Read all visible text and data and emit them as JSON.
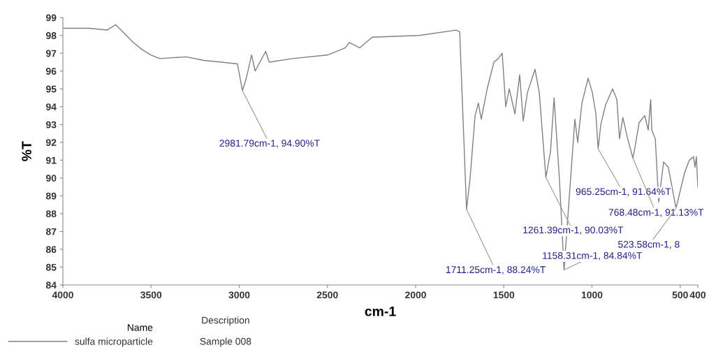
{
  "chart_data": {
    "type": "line",
    "xlabel": "cm-1",
    "ylabel": "%T",
    "xlim": [
      4000,
      400
    ],
    "xticks": [
      4000,
      3500,
      3000,
      2500,
      2000,
      1500,
      1000,
      500,
      400
    ],
    "ylim": [
      84,
      99
    ],
    "yticks": [
      84,
      85,
      86,
      87,
      88,
      89,
      90,
      91,
      92,
      93,
      94,
      95,
      96,
      97,
      98,
      99
    ],
    "grid": false,
    "legend": "bottom left",
    "legend_title": "Name",
    "series": [
      {
        "name": "sulfa microparticle",
        "color": "#808080",
        "x": [
          4000,
          3850,
          3750,
          3700,
          3650,
          3600,
          3550,
          3500,
          3450,
          3300,
          3200,
          3100,
          3010,
          2981.79,
          2960,
          2930,
          2910,
          2850,
          2830,
          2700,
          2500,
          2400,
          2376,
          2317,
          2246,
          1980,
          1770,
          1750,
          1711.25,
          1691,
          1663,
          1644,
          1628,
          1592,
          1556,
          1532,
          1509,
          1489,
          1469,
          1437,
          1410,
          1390,
          1366,
          1323,
          1299,
          1261.39,
          1235,
          1215,
          1185,
          1158.31,
          1121,
          1097,
          1081,
          1057,
          1022,
          998,
          978,
          965.25,
          950,
          923,
          883,
          859,
          844,
          825,
          800,
          768.48,
          760,
          733,
          701,
          681,
          667,
          661,
          641,
          622,
          594,
          567,
          523.58,
          475,
          448,
          424,
          416,
          408,
          400
        ],
        "values": [
          98.4,
          98.4,
          98.3,
          98.6,
          98.1,
          97.6,
          97.2,
          96.9,
          96.7,
          96.8,
          96.6,
          96.5,
          96.4,
          94.9,
          95.6,
          96.9,
          96.0,
          97.1,
          96.5,
          96.7,
          96.9,
          97.3,
          97.6,
          97.3,
          97.9,
          98.0,
          98.3,
          98.2,
          88.24,
          90.0,
          93.5,
          94.2,
          93.3,
          95.1,
          96.5,
          96.7,
          97.0,
          94.0,
          95.0,
          93.6,
          95.8,
          93.2,
          94.8,
          96.1,
          94.8,
          90.03,
          91.5,
          94.5,
          90.0,
          84.84,
          90.0,
          93.3,
          92.0,
          94.2,
          95.6,
          94.8,
          93.6,
          91.64,
          93.0,
          94.1,
          95.0,
          94.4,
          92.2,
          93.4,
          92.3,
          91.13,
          91.5,
          93.1,
          93.5,
          92.7,
          94.4,
          92.7,
          92.2,
          88.65,
          90.9,
          90.6,
          88.3,
          90.3,
          91.0,
          91.2,
          90.6,
          91.2,
          89.5
        ]
      }
    ],
    "annotations": [
      {
        "text": "2981.79cm-1, 94.90%T",
        "x": 2981.79,
        "y": 94.9
      },
      {
        "text": "1711.25cm-1, 88.24%T",
        "x": 1711.25,
        "y": 88.24
      },
      {
        "text": "1158.31cm-1, 84.84%T",
        "x": 1158.31,
        "y": 84.84
      },
      {
        "text": "1261.39cm-1, 90.03%T",
        "x": 1261.39,
        "y": 90.03
      },
      {
        "text": "965.25cm-1, 91.64%T",
        "x": 965.25,
        "y": 91.64
      },
      {
        "text": "768.48cm-1, 91.13%T",
        "x": 768.48,
        "y": 91.13
      },
      {
        "text": "523.58cm-1, 8",
        "x": 523.58,
        "y": 88.3
      },
      "Description",
      "Sample 008"
    ]
  }
}
